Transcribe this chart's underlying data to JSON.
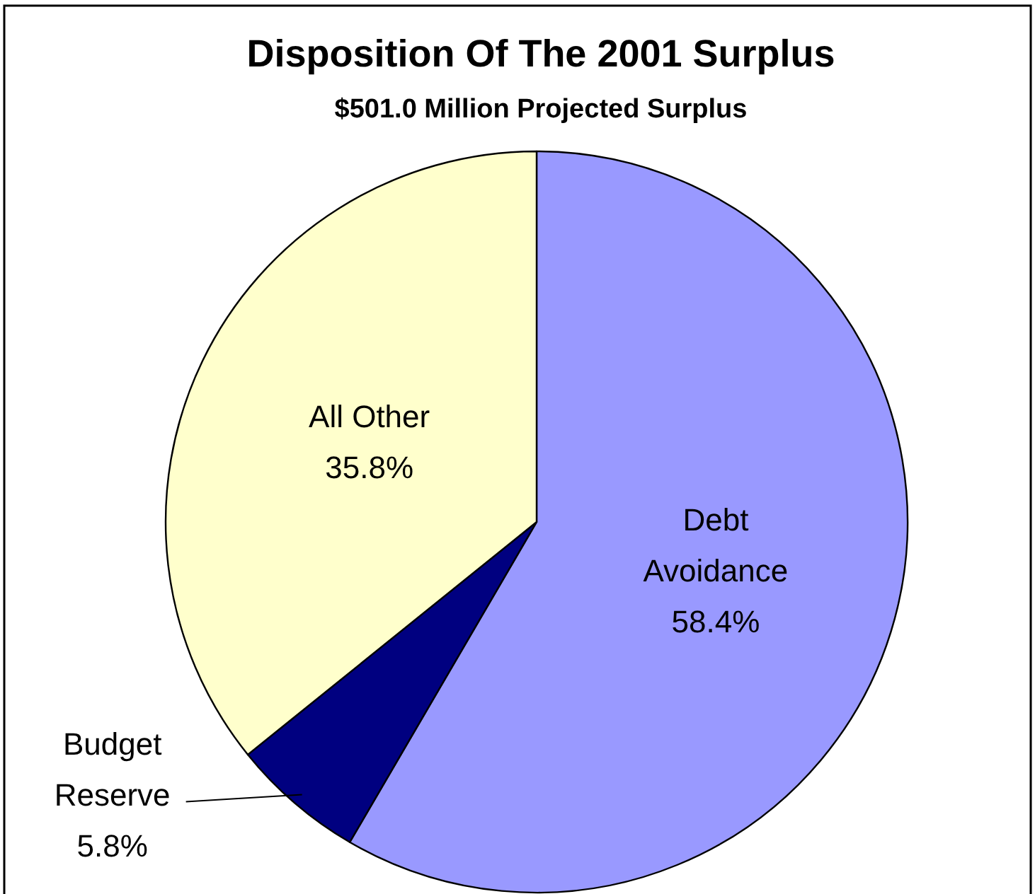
{
  "chart_data": {
    "type": "pie",
    "title": "Disposition Of The 2001 Surplus",
    "subtitle": "$501.0 Million Projected Surplus",
    "categories": [
      "Debt Avoidance",
      "Budget Reserve",
      "All Other"
    ],
    "values": [
      58.4,
      5.8,
      35.8
    ],
    "colors": [
      "#9999ff",
      "#000080",
      "#ffffcc"
    ],
    "value_labels": [
      "58.4%",
      "5.8%",
      "35.8%"
    ]
  }
}
